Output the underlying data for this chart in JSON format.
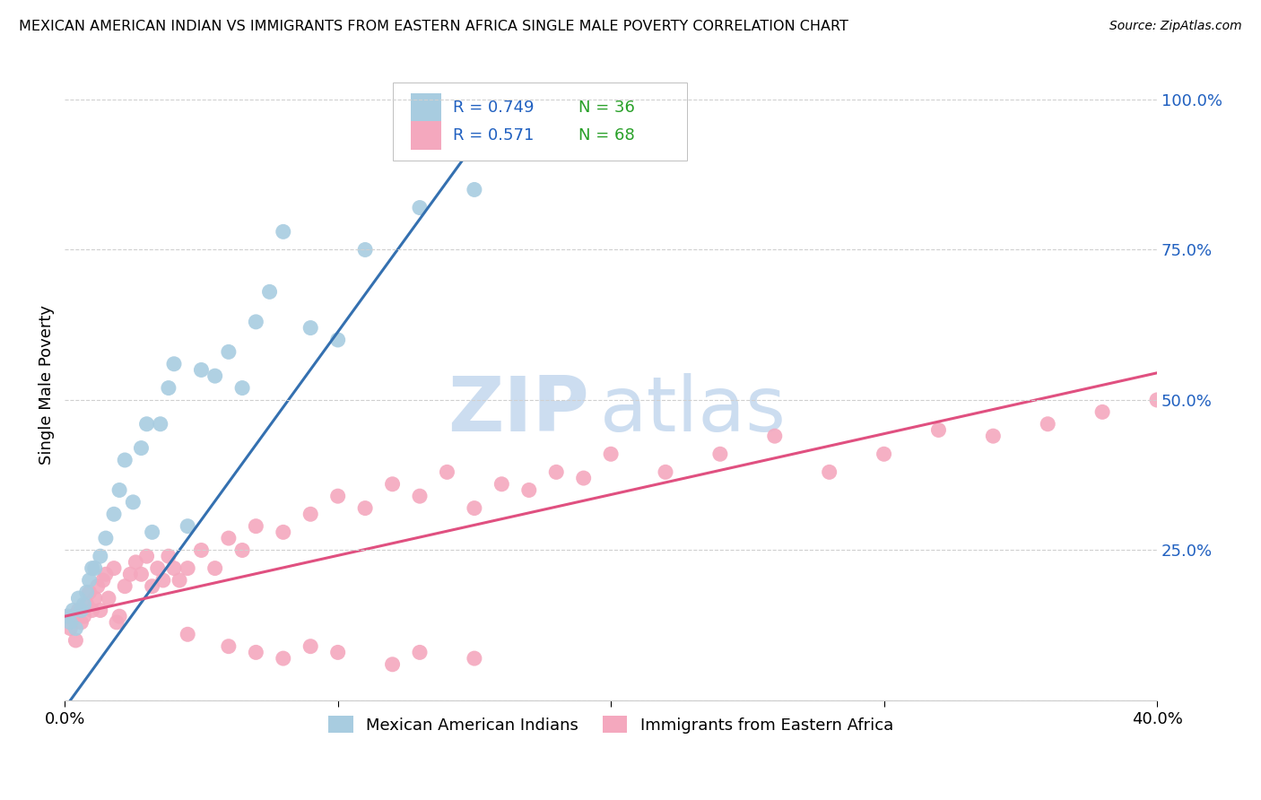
{
  "title": "MEXICAN AMERICAN INDIAN VS IMMIGRANTS FROM EASTERN AFRICA SINGLE MALE POVERTY CORRELATION CHART",
  "source": "Source: ZipAtlas.com",
  "ylabel": "Single Male Poverty",
  "ytick_labels": [
    "",
    "25.0%",
    "50.0%",
    "75.0%",
    "100.0%"
  ],
  "ytick_positions": [
    0,
    0.25,
    0.5,
    0.75,
    1.0
  ],
  "xlim": [
    0.0,
    0.4
  ],
  "ylim": [
    0.0,
    1.05
  ],
  "blue_R": "0.749",
  "blue_N": "36",
  "pink_R": "0.571",
  "pink_N": "68",
  "blue_label": "Mexican American Indians",
  "pink_label": "Immigrants from Eastern Africa",
  "blue_color": "#a8cce0",
  "pink_color": "#f4a8be",
  "blue_line_color": "#3470b0",
  "pink_line_color": "#e05080",
  "legend_color": "#2060c0",
  "n_color": "#28a028",
  "background_color": "#ffffff",
  "blue_scatter_x": [
    0.001,
    0.002,
    0.003,
    0.004,
    0.005,
    0.006,
    0.007,
    0.008,
    0.009,
    0.01,
    0.011,
    0.013,
    0.015,
    0.018,
    0.02,
    0.022,
    0.025,
    0.028,
    0.03,
    0.032,
    0.035,
    0.038,
    0.04,
    0.045,
    0.05,
    0.055,
    0.06,
    0.065,
    0.07,
    0.075,
    0.08,
    0.09,
    0.1,
    0.11,
    0.13,
    0.15
  ],
  "blue_scatter_y": [
    0.14,
    0.13,
    0.15,
    0.12,
    0.17,
    0.15,
    0.16,
    0.18,
    0.2,
    0.22,
    0.22,
    0.24,
    0.27,
    0.31,
    0.35,
    0.4,
    0.33,
    0.42,
    0.46,
    0.28,
    0.46,
    0.52,
    0.56,
    0.29,
    0.55,
    0.54,
    0.58,
    0.52,
    0.63,
    0.68,
    0.78,
    0.62,
    0.6,
    0.75,
    0.82,
    0.85
  ],
  "pink_scatter_x": [
    0.001,
    0.002,
    0.003,
    0.004,
    0.005,
    0.006,
    0.007,
    0.008,
    0.009,
    0.01,
    0.011,
    0.012,
    0.013,
    0.014,
    0.015,
    0.016,
    0.018,
    0.019,
    0.02,
    0.022,
    0.024,
    0.026,
    0.028,
    0.03,
    0.032,
    0.034,
    0.036,
    0.038,
    0.04,
    0.042,
    0.045,
    0.05,
    0.055,
    0.06,
    0.065,
    0.07,
    0.08,
    0.09,
    0.1,
    0.11,
    0.12,
    0.13,
    0.14,
    0.15,
    0.16,
    0.17,
    0.18,
    0.19,
    0.2,
    0.22,
    0.24,
    0.26,
    0.28,
    0.3,
    0.32,
    0.34,
    0.36,
    0.38,
    0.4,
    0.045,
    0.06,
    0.07,
    0.08,
    0.09,
    0.1,
    0.12,
    0.13,
    0.15
  ],
  "pink_scatter_y": [
    0.14,
    0.12,
    0.14,
    0.1,
    0.15,
    0.13,
    0.14,
    0.16,
    0.18,
    0.15,
    0.17,
    0.19,
    0.15,
    0.2,
    0.21,
    0.17,
    0.22,
    0.13,
    0.14,
    0.19,
    0.21,
    0.23,
    0.21,
    0.24,
    0.19,
    0.22,
    0.2,
    0.24,
    0.22,
    0.2,
    0.22,
    0.25,
    0.22,
    0.27,
    0.25,
    0.29,
    0.28,
    0.31,
    0.34,
    0.32,
    0.36,
    0.34,
    0.38,
    0.32,
    0.36,
    0.35,
    0.38,
    0.37,
    0.41,
    0.38,
    0.41,
    0.44,
    0.38,
    0.41,
    0.45,
    0.44,
    0.46,
    0.48,
    0.5,
    0.11,
    0.09,
    0.08,
    0.07,
    0.09,
    0.08,
    0.06,
    0.08,
    0.07
  ],
  "blue_line_x": [
    0.002,
    0.165
  ],
  "blue_line_y": [
    0.0,
    1.02
  ],
  "pink_line_x": [
    0.0,
    0.4
  ],
  "pink_line_y": [
    0.14,
    0.545
  ],
  "watermark_zip": "ZIP",
  "watermark_atlas": "atlas",
  "watermark_color": "#ccddf0",
  "watermark_fontsize": 62
}
